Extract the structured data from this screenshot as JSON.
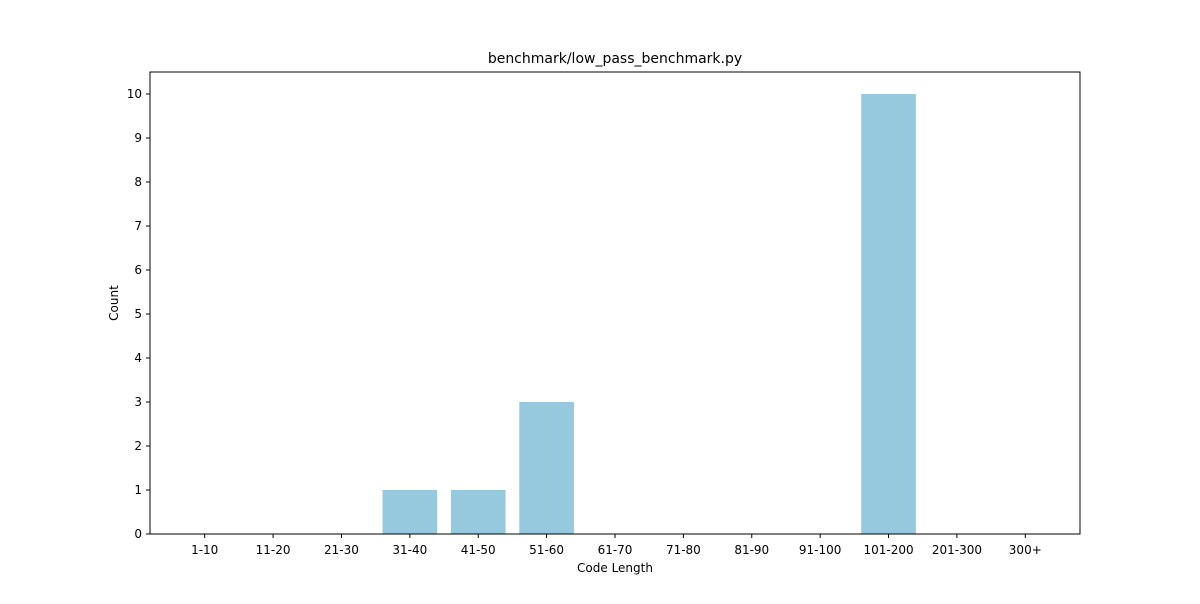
{
  "chart_data": {
    "type": "bar",
    "title": "benchmark/low_pass_benchmark.py",
    "xlabel": "Code Length",
    "ylabel": "Count",
    "categories": [
      "1-10",
      "11-20",
      "21-30",
      "31-40",
      "41-50",
      "51-60",
      "61-70",
      "71-80",
      "81-90",
      "91-100",
      "101-200",
      "201-300",
      "300+"
    ],
    "values": [
      0,
      0,
      0,
      1,
      1,
      3,
      0,
      0,
      0,
      0,
      10,
      0,
      0
    ],
    "ylim": [
      0,
      10.5
    ],
    "yticks": [
      0,
      1,
      2,
      3,
      4,
      5,
      6,
      7,
      8,
      9,
      10
    ],
    "grid": false,
    "legend": "none",
    "colors": {
      "bar": "#96c9dd",
      "axis": "#000000",
      "background": "#ffffff"
    }
  }
}
